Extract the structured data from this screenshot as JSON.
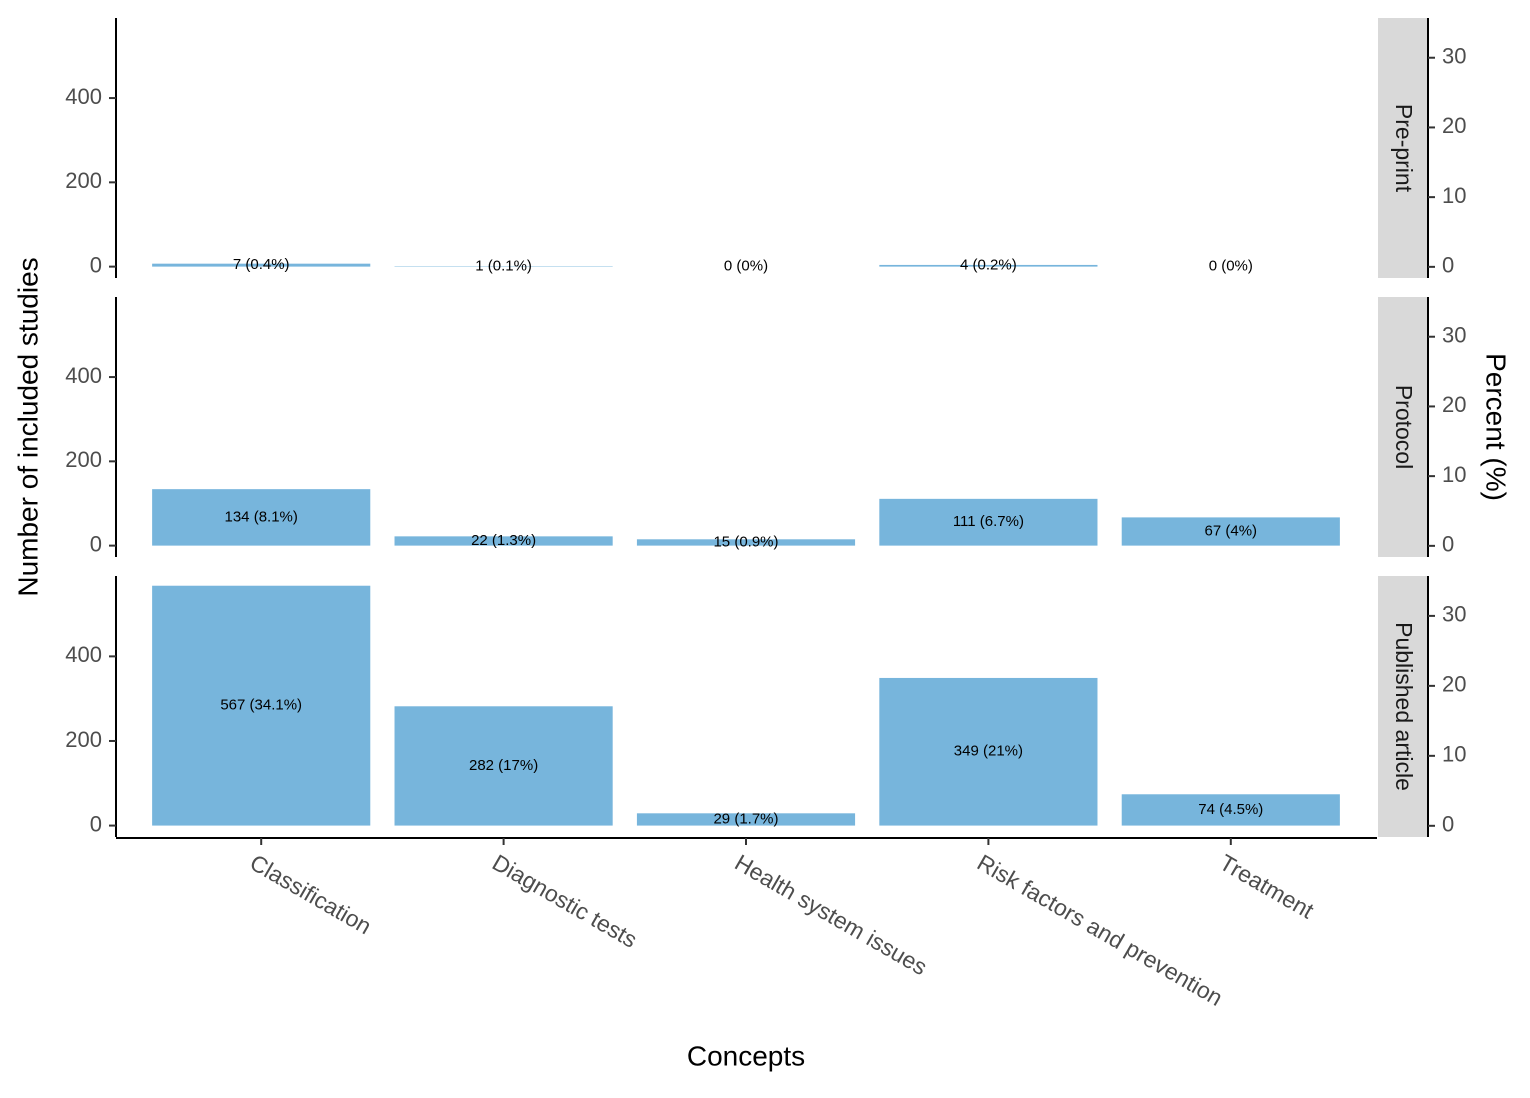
{
  "chart_data": {
    "type": "bar",
    "x_label": "Concepts",
    "y_label": "Number of included studies",
    "y2_label": "Percent (%)",
    "categories": [
      "Classification",
      "Diagnostic tests",
      "Health system issues",
      "Risk factors and prevention",
      "Treatment"
    ],
    "color": "#77b5dc",
    "ylim": [
      -27,
      590
    ],
    "yticks": [
      0,
      200,
      400
    ],
    "y2lim": [
      -1.6,
      35.7
    ],
    "y2ticks": [
      0,
      10,
      20,
      30
    ],
    "facets": [
      {
        "label": "Pre-print",
        "values": [
          7,
          1,
          0,
          4,
          0
        ],
        "value_labels": [
          "7 (0.4%)",
          "1 (0.1%)",
          "0 (0%)",
          "4 (0.2%)",
          "0 (0%)"
        ]
      },
      {
        "label": "Protocol",
        "values": [
          134,
          22,
          15,
          111,
          67
        ],
        "value_labels": [
          "134 (8.1%)",
          "22 (1.3%)",
          "15 (0.9%)",
          "111 (6.7%)",
          "67 (4%)"
        ]
      },
      {
        "label": "Published article",
        "values": [
          567,
          282,
          29,
          349,
          74
        ],
        "value_labels": [
          "567 (34.1%)",
          "282 (17%)",
          "29 (1.7%)",
          "349 (21%)",
          "74 (4.5%)"
        ]
      }
    ]
  }
}
